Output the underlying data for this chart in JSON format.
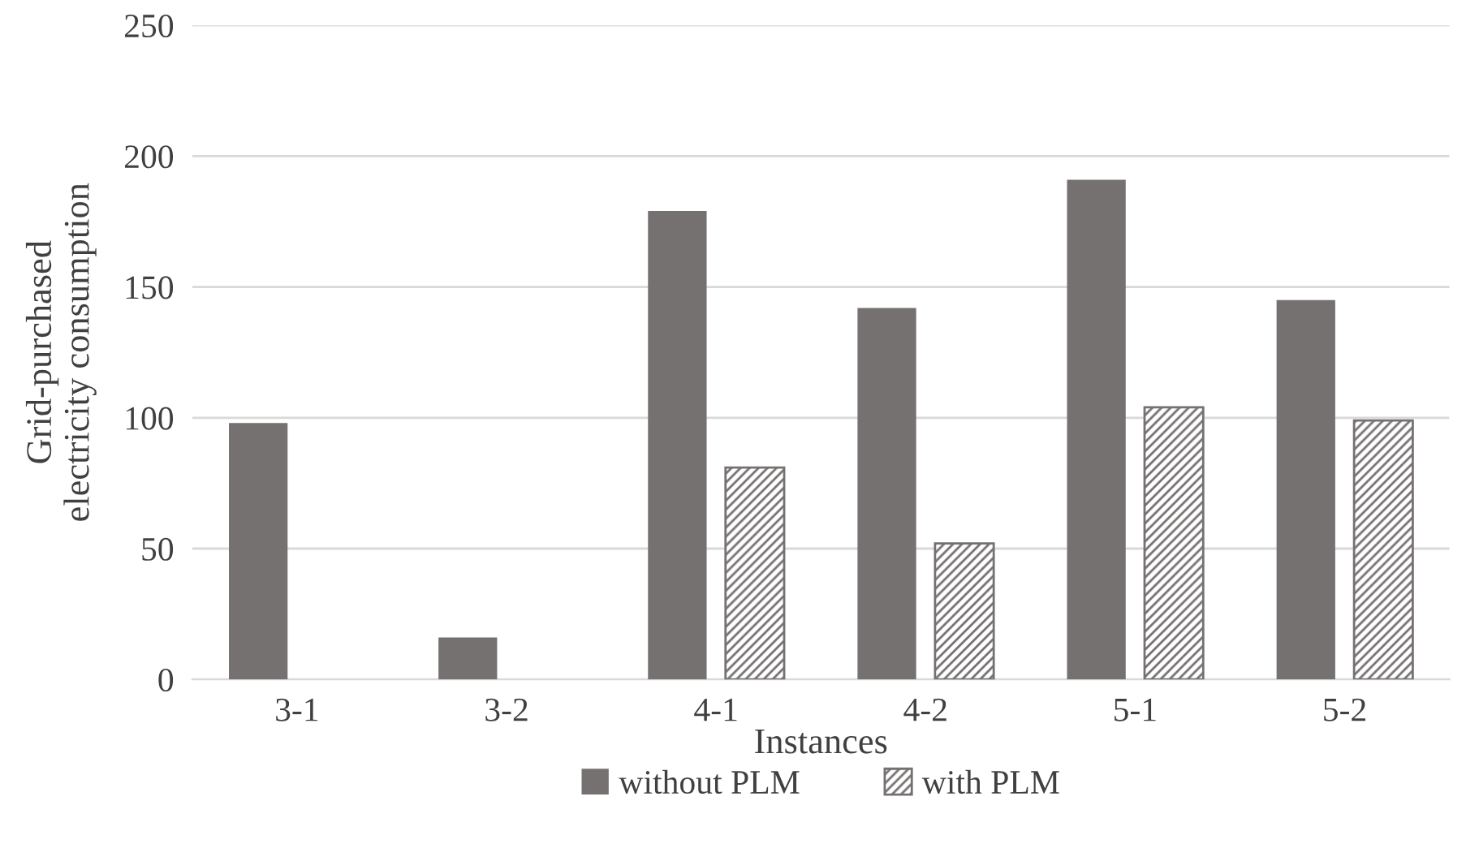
{
  "chart_data": {
    "type": "bar",
    "xlabel": "Instances",
    "ylabel": "Grid-purchased\nelectricity consumption",
    "categories": [
      "3-1",
      "3-2",
      "4-1",
      "4-2",
      "5-1",
      "5-2"
    ],
    "series": [
      {
        "name": "without PLM",
        "color": "#767171",
        "values": [
          98,
          16,
          179,
          142,
          191,
          145
        ]
      },
      {
        "name": "with PLM",
        "color": "#767171",
        "values": [
          null,
          null,
          81,
          52,
          104,
          99
        ]
      }
    ],
    "ylim": [
      0,
      250
    ],
    "yticks": [
      0,
      50,
      100,
      150,
      200,
      250
    ],
    "grid": "y",
    "legend": "bottom"
  }
}
